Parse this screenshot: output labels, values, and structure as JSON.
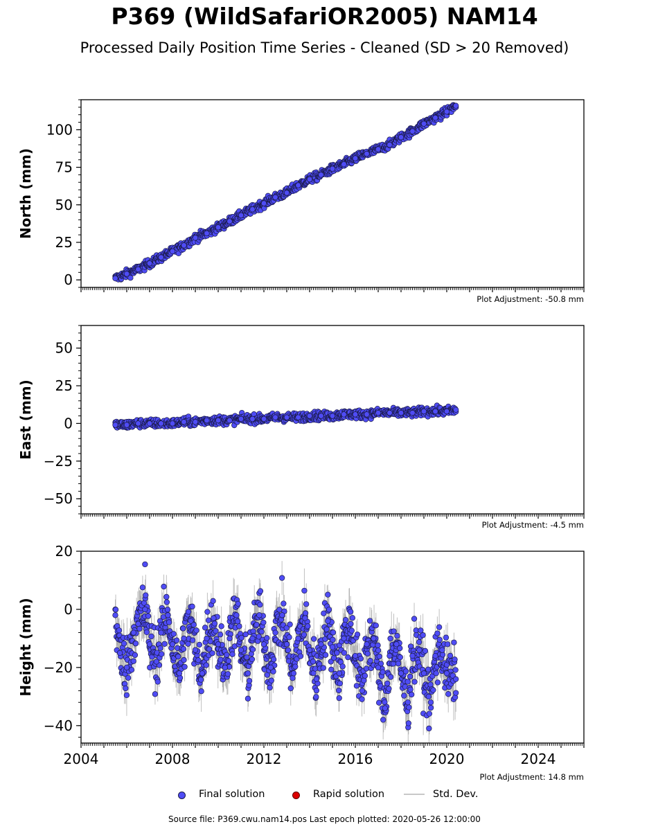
{
  "title": "P369 (WildSafariOR2005) NAM14",
  "subtitle": "Processed Daily Position Time Series - Cleaned (SD > 20 Removed)",
  "colors": {
    "final": "#4f4cf5",
    "rapid": "#dd0000",
    "std": "#c8c8c8",
    "edge": "#1a1a4a"
  },
  "legend": {
    "final_label": "Final solution",
    "rapid_label": "Rapid solution",
    "std_label": "Std. Dev."
  },
  "footer": "Source file: P369.cwu.nam14.pos  Last epoch plotted: 2020-05-26 12:00:00",
  "chart_data": [
    {
      "type": "scatter",
      "ylabel": "North (mm)",
      "adjustment": "Plot Adjustment: -50.8 mm",
      "xlim": [
        2004.0,
        2026.0
      ],
      "ylim": [
        -5,
        120
      ],
      "yticks": [
        0,
        25,
        50,
        75,
        100
      ],
      "ytick_labels": [
        "0",
        "25",
        "50",
        "75",
        "100"
      ],
      "xtick_labels": [],
      "series": [
        {
          "x": [
            2005.5,
            2006.0,
            2006.5,
            2007.0,
            2007.5,
            2008.0,
            2008.5,
            2009.0,
            2009.5,
            2010.0,
            2010.5,
            2011.0,
            2011.5,
            2012.0,
            2012.5,
            2013.0,
            2013.5,
            2014.0,
            2014.5,
            2015.0,
            2015.5,
            2016.0,
            2016.5,
            2017.0,
            2017.5,
            2018.0,
            2018.5,
            2019.0,
            2019.5,
            2020.0,
            2020.4
          ],
          "y": [
            1,
            4,
            7,
            11,
            15,
            19,
            23,
            28,
            31,
            35,
            39,
            43,
            47,
            51,
            55,
            58,
            63,
            67,
            70,
            74,
            77,
            81,
            84,
            87,
            90,
            95,
            99,
            104,
            108,
            112,
            116
          ]
        }
      ]
    },
    {
      "type": "scatter",
      "ylabel": "East (mm)",
      "adjustment": "Plot Adjustment: -4.5 mm",
      "xlim": [
        2004.0,
        2026.0
      ],
      "ylim": [
        -60,
        65
      ],
      "yticks": [
        -50,
        -25,
        0,
        25,
        50
      ],
      "ytick_labels": [
        "−50",
        "−25",
        "0",
        "25",
        "50"
      ],
      "xtick_labels": [],
      "series": [
        {
          "x": [
            2005.5,
            2006.0,
            2006.5,
            2007.0,
            2007.5,
            2008.0,
            2008.5,
            2009.0,
            2009.5,
            2010.0,
            2010.5,
            2011.0,
            2011.5,
            2012.0,
            2012.5,
            2013.0,
            2013.5,
            2014.0,
            2014.5,
            2015.0,
            2015.5,
            2016.0,
            2016.5,
            2017.0,
            2017.5,
            2018.0,
            2018.5,
            2019.0,
            2019.5,
            2020.0,
            2020.4
          ],
          "y": [
            -1,
            -1,
            0,
            0,
            0,
            0,
            1,
            1,
            2,
            2,
            2,
            3,
            3,
            3,
            4,
            4,
            4,
            5,
            5,
            5,
            6,
            6,
            6,
            7,
            7,
            7,
            7,
            8,
            8,
            8,
            9
          ]
        }
      ]
    },
    {
      "type": "scatter",
      "ylabel": "Height (mm)",
      "adjustment": "Plot Adjustment: 14.8 mm",
      "xlim": [
        2004.0,
        2026.0
      ],
      "ylim": [
        -46,
        20
      ],
      "yticks": [
        -40,
        -20,
        0,
        20
      ],
      "ytick_labels": [
        "−40",
        "−20",
        "0",
        "20"
      ],
      "xticks": [
        2004,
        2008,
        2012,
        2016,
        2020,
        2024
      ],
      "xtick_labels": [
        "2004",
        "2008",
        "2012",
        "2016",
        "2020",
        "2024"
      ],
      "series": [
        {
          "x": [
            2005.5,
            2005.7,
            2006.0,
            2006.3,
            2006.5,
            2006.8,
            2007.0,
            2007.3,
            2007.5,
            2007.8,
            2008.0,
            2008.3,
            2008.5,
            2008.8,
            2009.0,
            2009.3,
            2009.5,
            2009.8,
            2010.0,
            2010.3,
            2010.5,
            2010.8,
            2011.0,
            2011.3,
            2011.5,
            2011.8,
            2012.0,
            2012.3,
            2012.5,
            2012.8,
            2013.0,
            2013.3,
            2013.5,
            2013.8,
            2014.0,
            2014.3,
            2014.5,
            2014.8,
            2015.0,
            2015.3,
            2015.5,
            2015.8,
            2016.0,
            2016.3,
            2016.5,
            2016.8,
            2017.0,
            2017.3,
            2017.5,
            2017.8,
            2018.0,
            2018.3,
            2018.5,
            2018.8,
            2019.0,
            2019.3,
            2019.5,
            2019.8,
            2020.0,
            2020.4
          ],
          "y": [
            -2,
            -15,
            -20,
            -8,
            -5,
            0,
            -12,
            -18,
            -8,
            -2,
            -12,
            -22,
            -10,
            -4,
            -14,
            -22,
            -10,
            -3,
            -12,
            -20,
            -10,
            -2,
            -14,
            -22,
            -10,
            -2,
            -12,
            -20,
            -8,
            -2,
            -12,
            -22,
            -10,
            -3,
            -14,
            -24,
            -12,
            -4,
            -13,
            -22,
            -10,
            -5,
            -16,
            -28,
            -12,
            -10,
            -20,
            -34,
            -16,
            -12,
            -22,
            -32,
            -16,
            -14,
            -22,
            -32,
            -16,
            -14,
            -22,
            -24
          ]
        }
      ]
    }
  ]
}
